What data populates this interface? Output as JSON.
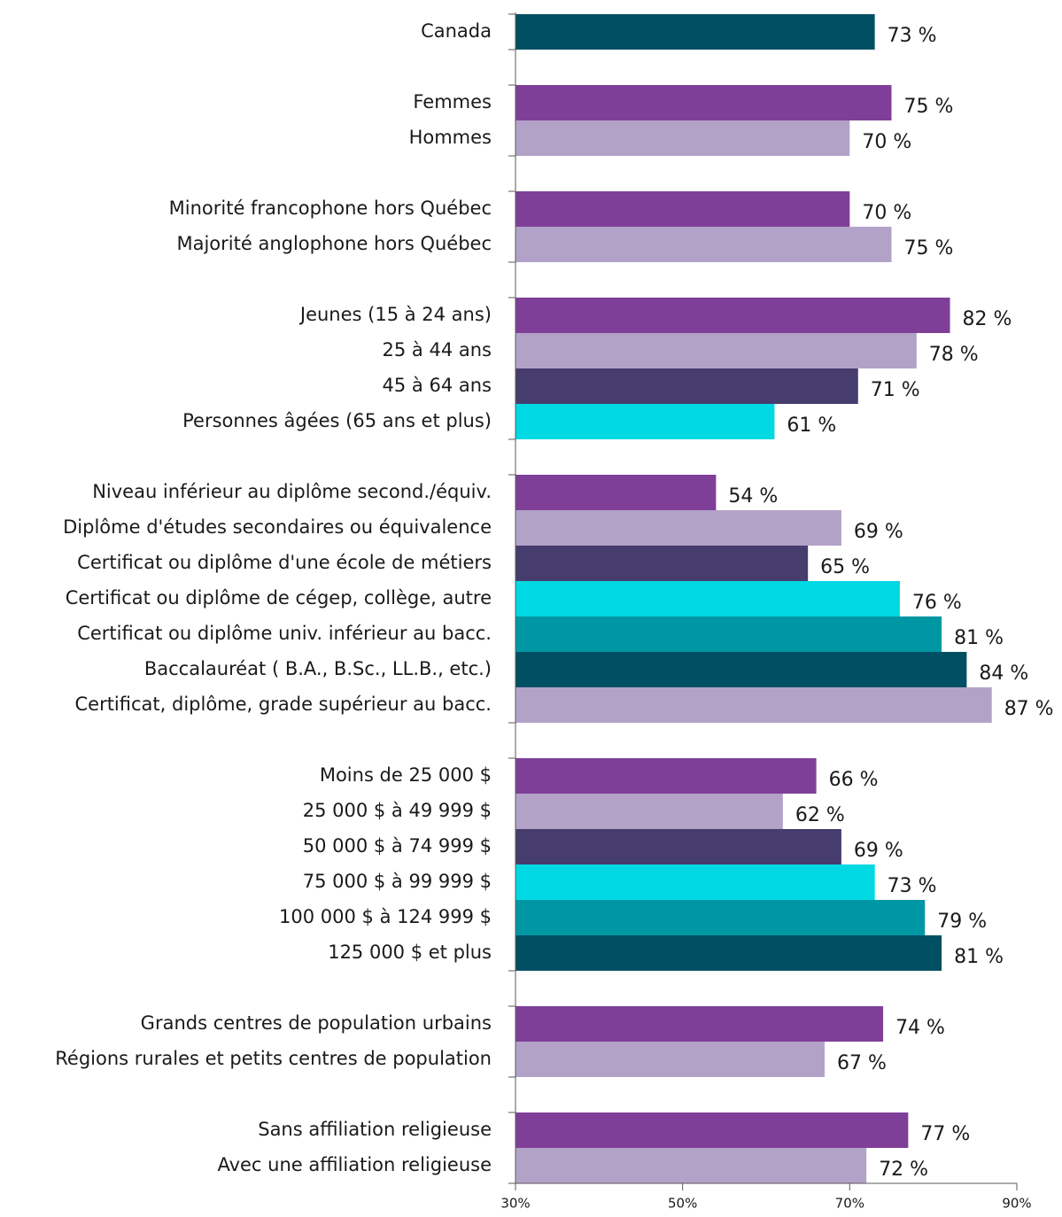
{
  "chart_data": {
    "type": "hbar",
    "categories": [
      "Canada",
      null,
      "Femmes",
      "Hommes",
      null,
      "Minorité francophone hors Québec",
      "Majorité anglophone hors Québec",
      null,
      "Jeunes (15 à 24 ans)",
      "25 à 44 ans",
      "45 à 64 ans",
      "Personnes âgées (65 ans et plus)",
      null,
      "Niveau inférieur au diplôme second./équiv.",
      "Diplôme d'études secondaires ou équivalence",
      "Certificat ou diplôme d'une école de métiers",
      "Certificat ou diplôme de cégep, collège, autre",
      "Certificat ou diplôme univ. inférieur au bacc.",
      "Baccalauréat ( B.A., B.Sc., LL.B., etc.)",
      "Certificat, diplôme, grade supérieur au bacc.",
      null,
      "Moins de 25 000 $",
      "25 000 $ à 49 999 $",
      "50 000 $ à 74 999 $",
      "75 000 $ à 99 999 $",
      "100 000 $ à 124 999 $",
      "125 000 $ et plus",
      null,
      "Grands centres de population urbains",
      "Régions rurales et petits centres de population",
      null,
      "Sans affiliation religieuse",
      "Avec une affiliation religieuse"
    ],
    "values": [
      73,
      null,
      75,
      70,
      null,
      70,
      75,
      null,
      82,
      78,
      71,
      61,
      null,
      54,
      69,
      65,
      76,
      81,
      84,
      87,
      null,
      66,
      62,
      69,
      73,
      79,
      81,
      null,
      74,
      67,
      null,
      77,
      72
    ],
    "value_labels": [
      "73 %",
      null,
      "75 %",
      "70 %",
      null,
      "70 %",
      "75 %",
      null,
      "82 %",
      "78 %",
      "71 %",
      "61 %",
      null,
      "54 %",
      "69 %",
      "65 %",
      "76 %",
      "81 %",
      "84 %",
      "87 %",
      null,
      "66 %",
      "62 %",
      "69 %",
      "73 %",
      "79 %",
      "81 %",
      null,
      "74 %",
      "67 %",
      null,
      "77 %",
      "72 %"
    ],
    "colors": [
      "#004f63",
      null,
      "#7f3f98",
      "#b3a2c8",
      null,
      "#7f3f98",
      "#b3a2c8",
      null,
      "#7f3f98",
      "#b3a2c8",
      "#463c6e",
      "#00d9e3",
      null,
      "#7f3f98",
      "#b3a2c8",
      "#463c6e",
      "#00d9e3",
      "#0097a4",
      "#004f63",
      "#b3a2c8",
      null,
      "#7f3f98",
      "#b3a2c8",
      "#463c6e",
      "#00d9e3",
      "#0097a4",
      "#004f63",
      null,
      "#7f3f98",
      "#b3a2c8",
      null,
      "#7f3f98",
      "#b3a2c8"
    ],
    "xlim": [
      30,
      90
    ],
    "xticks": [
      {
        "value": 30,
        "label": "30%"
      },
      {
        "value": 50,
        "label": "50%"
      },
      {
        "value": 70,
        "label": "70%"
      },
      {
        "value": 90,
        "label": "90%"
      }
    ]
  }
}
